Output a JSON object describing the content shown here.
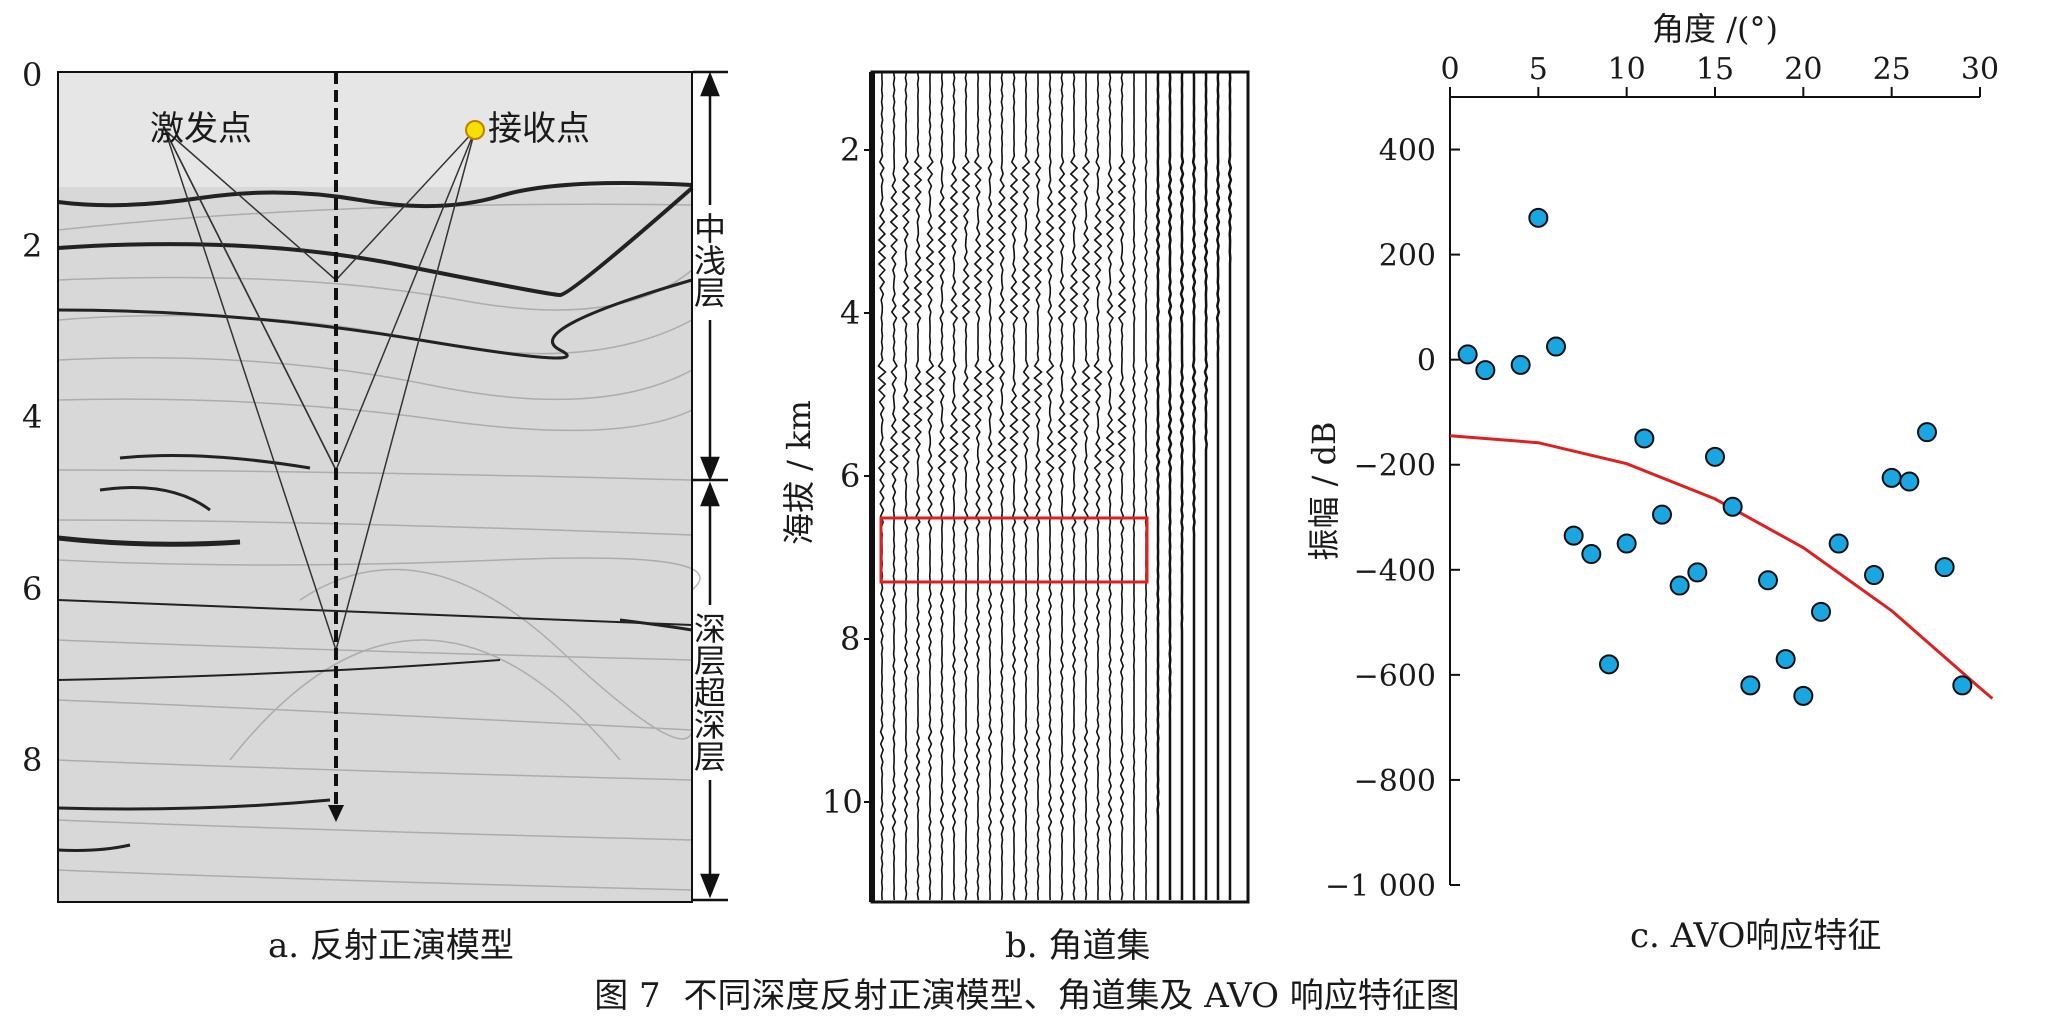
{
  "panel_a": {
    "caption": "a. 反射正演模型",
    "y_ticks": [
      "0",
      "2",
      "4",
      "6",
      "8"
    ],
    "source_label": "激发点",
    "receiver_label": "接收点",
    "shallow_label": "中浅层",
    "deep_label": "深层超深层"
  },
  "panel_b": {
    "caption": "b. 角道集",
    "y_ticks": [
      "2",
      "4",
      "6",
      "8",
      "10"
    ],
    "ylabel": "海拔 / km",
    "highlight_color": "#e02020"
  },
  "figure_caption": {
    "number": "图 7",
    "text": "不同深度反射正演模型、角道集及 AVO 响应特征图"
  },
  "chart_data": {
    "type": "scatter",
    "caption": "c. AVO响应特征",
    "xlabel": "角度 /(°)",
    "ylabel": "振幅 / dB",
    "xlim": [
      0,
      30
    ],
    "ylim": [
      -1000,
      500
    ],
    "x_ticks": [
      0,
      5,
      10,
      15,
      20,
      25,
      30
    ],
    "y_ticks": [
      400,
      200,
      0,
      -200,
      -400,
      -600,
      -800,
      -1000
    ],
    "y_tick_labels": [
      "400",
      "200",
      "0",
      "−200",
      "−400",
      "−600",
      "−800",
      "−1 000"
    ],
    "x_axis_position": "top",
    "grid": false,
    "point_color": "#1aa6e0",
    "trend_color": "#e02020",
    "points": [
      {
        "x": 1,
        "y": 10
      },
      {
        "x": 2,
        "y": -20
      },
      {
        "x": 4,
        "y": -10
      },
      {
        "x": 5,
        "y": 270
      },
      {
        "x": 6,
        "y": 25
      },
      {
        "x": 7,
        "y": -335
      },
      {
        "x": 8,
        "y": -370
      },
      {
        "x": 9,
        "y": -580
      },
      {
        "x": 10,
        "y": -350
      },
      {
        "x": 11,
        "y": -150
      },
      {
        "x": 12,
        "y": -295
      },
      {
        "x": 13,
        "y": -430
      },
      {
        "x": 14,
        "y": -405
      },
      {
        "x": 15,
        "y": -185
      },
      {
        "x": 16,
        "y": -280
      },
      {
        "x": 17,
        "y": -620
      },
      {
        "x": 18,
        "y": -420
      },
      {
        "x": 19,
        "y": -570
      },
      {
        "x": 20,
        "y": -640
      },
      {
        "x": 21,
        "y": -480
      },
      {
        "x": 22,
        "y": -350
      },
      {
        "x": 24,
        "y": -410
      },
      {
        "x": 25,
        "y": -225
      },
      {
        "x": 26,
        "y": -232
      },
      {
        "x": 27,
        "y": -138
      },
      {
        "x": 28,
        "y": -395
      },
      {
        "x": 29,
        "y": -620
      }
    ],
    "trend": [
      {
        "x": 0,
        "y": -145
      },
      {
        "x": 5,
        "y": -158
      },
      {
        "x": 10,
        "y": -198
      },
      {
        "x": 15,
        "y": -265
      },
      {
        "x": 20,
        "y": -358
      },
      {
        "x": 25,
        "y": -478
      },
      {
        "x": 30,
        "y": -625
      },
      {
        "x": 30.7,
        "y": -645
      }
    ]
  }
}
